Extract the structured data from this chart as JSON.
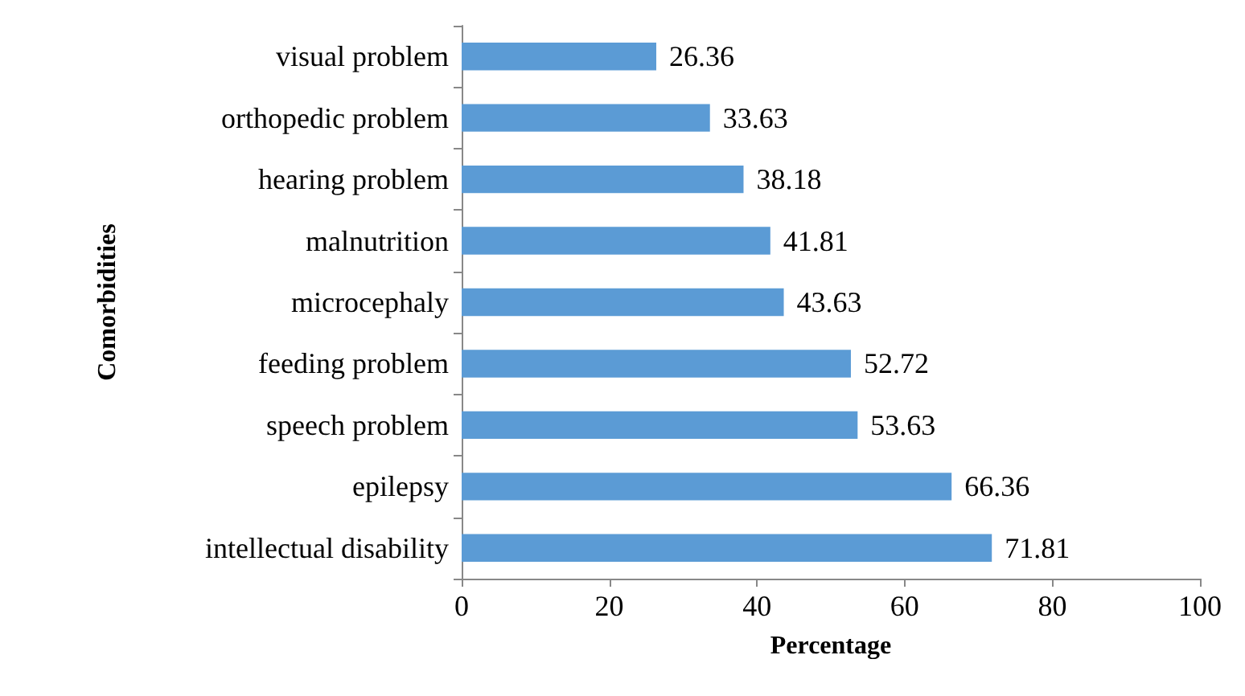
{
  "chart_data": {
    "type": "bar",
    "orientation": "horizontal",
    "xlabel": "Percentage",
    "ylabel": "Comorbidities",
    "categories": [
      "visual problem",
      "orthopedic problem",
      "hearing problem",
      "malnutrition",
      "microcephaly",
      "feeding problem",
      "speech problem",
      "epilepsy",
      "intellectual disability"
    ],
    "values": [
      26.36,
      33.63,
      38.18,
      41.81,
      43.63,
      52.72,
      53.63,
      66.36,
      71.81
    ],
    "color": "#5b9bd5",
    "xlim": [
      0,
      100
    ],
    "xticks": [
      0,
      20,
      40,
      60,
      80,
      100
    ],
    "grid": false,
    "data_labels": true
  }
}
